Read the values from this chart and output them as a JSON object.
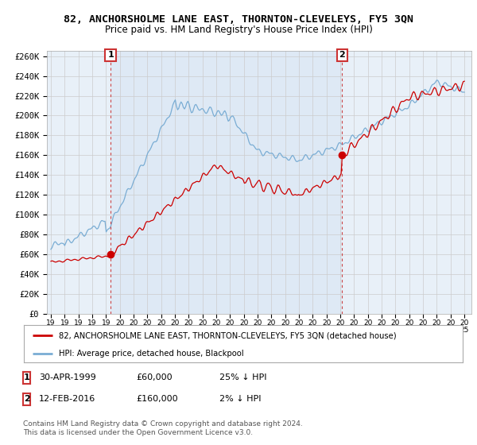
{
  "title": "82, ANCHORSHOLME LANE EAST, THORNTON-CLEVELEYS, FY5 3QN",
  "subtitle": "Price paid vs. HM Land Registry's House Price Index (HPI)",
  "ylim": [
    0,
    265000
  ],
  "yticks": [
    0,
    20000,
    40000,
    60000,
    80000,
    100000,
    120000,
    140000,
    160000,
    180000,
    200000,
    220000,
    240000,
    260000
  ],
  "ytick_labels": [
    "£0",
    "£20K",
    "£40K",
    "£60K",
    "£80K",
    "£100K",
    "£120K",
    "£140K",
    "£160K",
    "£180K",
    "£200K",
    "£220K",
    "£240K",
    "£260K"
  ],
  "xlim_start": 1994.7,
  "xlim_end": 2025.5,
  "background_color": "#ffffff",
  "chart_bg_color": "#e8f0f8",
  "grid_color": "#cccccc",
  "sale1_year": 1999.33,
  "sale1_price": 60000,
  "sale1_label": "1",
  "sale1_date": "30-APR-1999",
  "sale1_amount": "£60,000",
  "sale1_info": "25% ↓ HPI",
  "sale2_year": 2016.12,
  "sale2_price": 160000,
  "sale2_label": "2",
  "sale2_date": "12-FEB-2016",
  "sale2_amount": "£160,000",
  "sale2_info": "2% ↓ HPI",
  "red_color": "#cc0000",
  "blue_color": "#7aadd4",
  "shade_color": "#dce8f5",
  "legend_red_label": "82, ANCHORSHOLME LANE EAST, THORNTON-CLEVELEYS, FY5 3QN (detached house)",
  "legend_blue_label": "HPI: Average price, detached house, Blackpool",
  "footer": "Contains HM Land Registry data © Crown copyright and database right 2024.\nThis data is licensed under the Open Government Licence v3.0."
}
